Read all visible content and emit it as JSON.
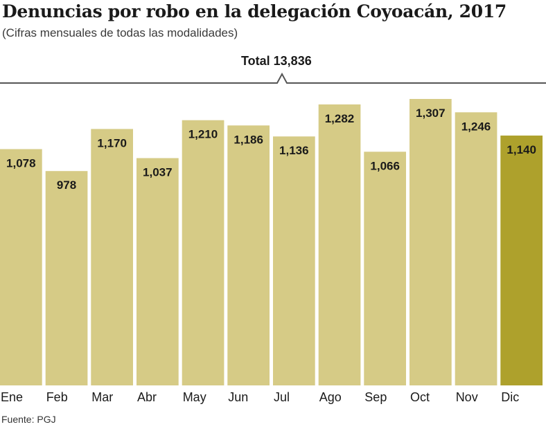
{
  "title": "Denuncias por robo en la delegación Coyoacán, 2017",
  "subtitle": "(Cifras mensuales de todas las modalidades)",
  "total_label": "Total 13,836",
  "source": "Fuente: PGJ",
  "colors": {
    "bar": "#d6cb86",
    "bar_highlight": "#aea12c",
    "bracket": "#555555"
  },
  "chart_data": {
    "type": "bar",
    "title": "Denuncias por robo en la delegación Coyoacán, 2017",
    "subtitle": "(Cifras mensuales de todas las modalidades)",
    "categories": [
      "Ene",
      "Feb",
      "Mar",
      "Abr",
      "May",
      "Jun",
      "Jul",
      "Ago",
      "Sep",
      "Oct",
      "Nov",
      "Dic"
    ],
    "values": [
      1078,
      978,
      1170,
      1037,
      1210,
      1186,
      1136,
      1282,
      1066,
      1307,
      1246,
      1140
    ],
    "value_labels": [
      "1,078",
      "978",
      "1,170",
      "1,037",
      "1,210",
      "1,186",
      "1,136",
      "1,282",
      "1,066",
      "1,307",
      "1,246",
      "1,140"
    ],
    "highlight_index": 11,
    "total": 13836,
    "xlabel": "",
    "ylabel": "",
    "ylim": [
      0,
      1320
    ],
    "grid": false,
    "legend": "none"
  }
}
